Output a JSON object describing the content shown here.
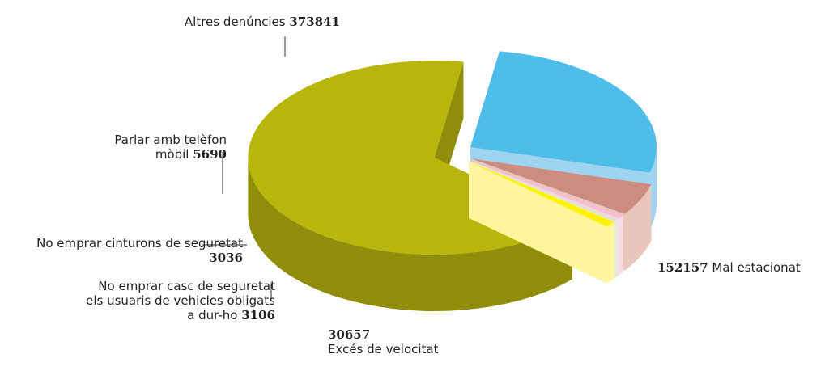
{
  "chart_data": {
    "type": "pie3d",
    "categories": [
      "Mal estacionat",
      "Excés de velocitat",
      "No emprar casc de seguretat els usuaris de vehicles obligats a dur-ho",
      "No emprar cinturons de seguretat",
      "Parlar amb telèfon mòbil",
      "Altres denúncies"
    ],
    "values": [
      152157,
      30657,
      3106,
      3036,
      5690,
      373841
    ],
    "colors": [
      "#4fbde9",
      "#cc8c80",
      "#f8bcd8",
      "#e6e0d2",
      "#fff200",
      "#b8b60c"
    ],
    "side_colors": [
      "#9fd4f1",
      "#e8c6bb",
      "#fadbe8",
      "#ece8dd",
      "#fff59d",
      "#8f8d0a"
    ]
  }
}
